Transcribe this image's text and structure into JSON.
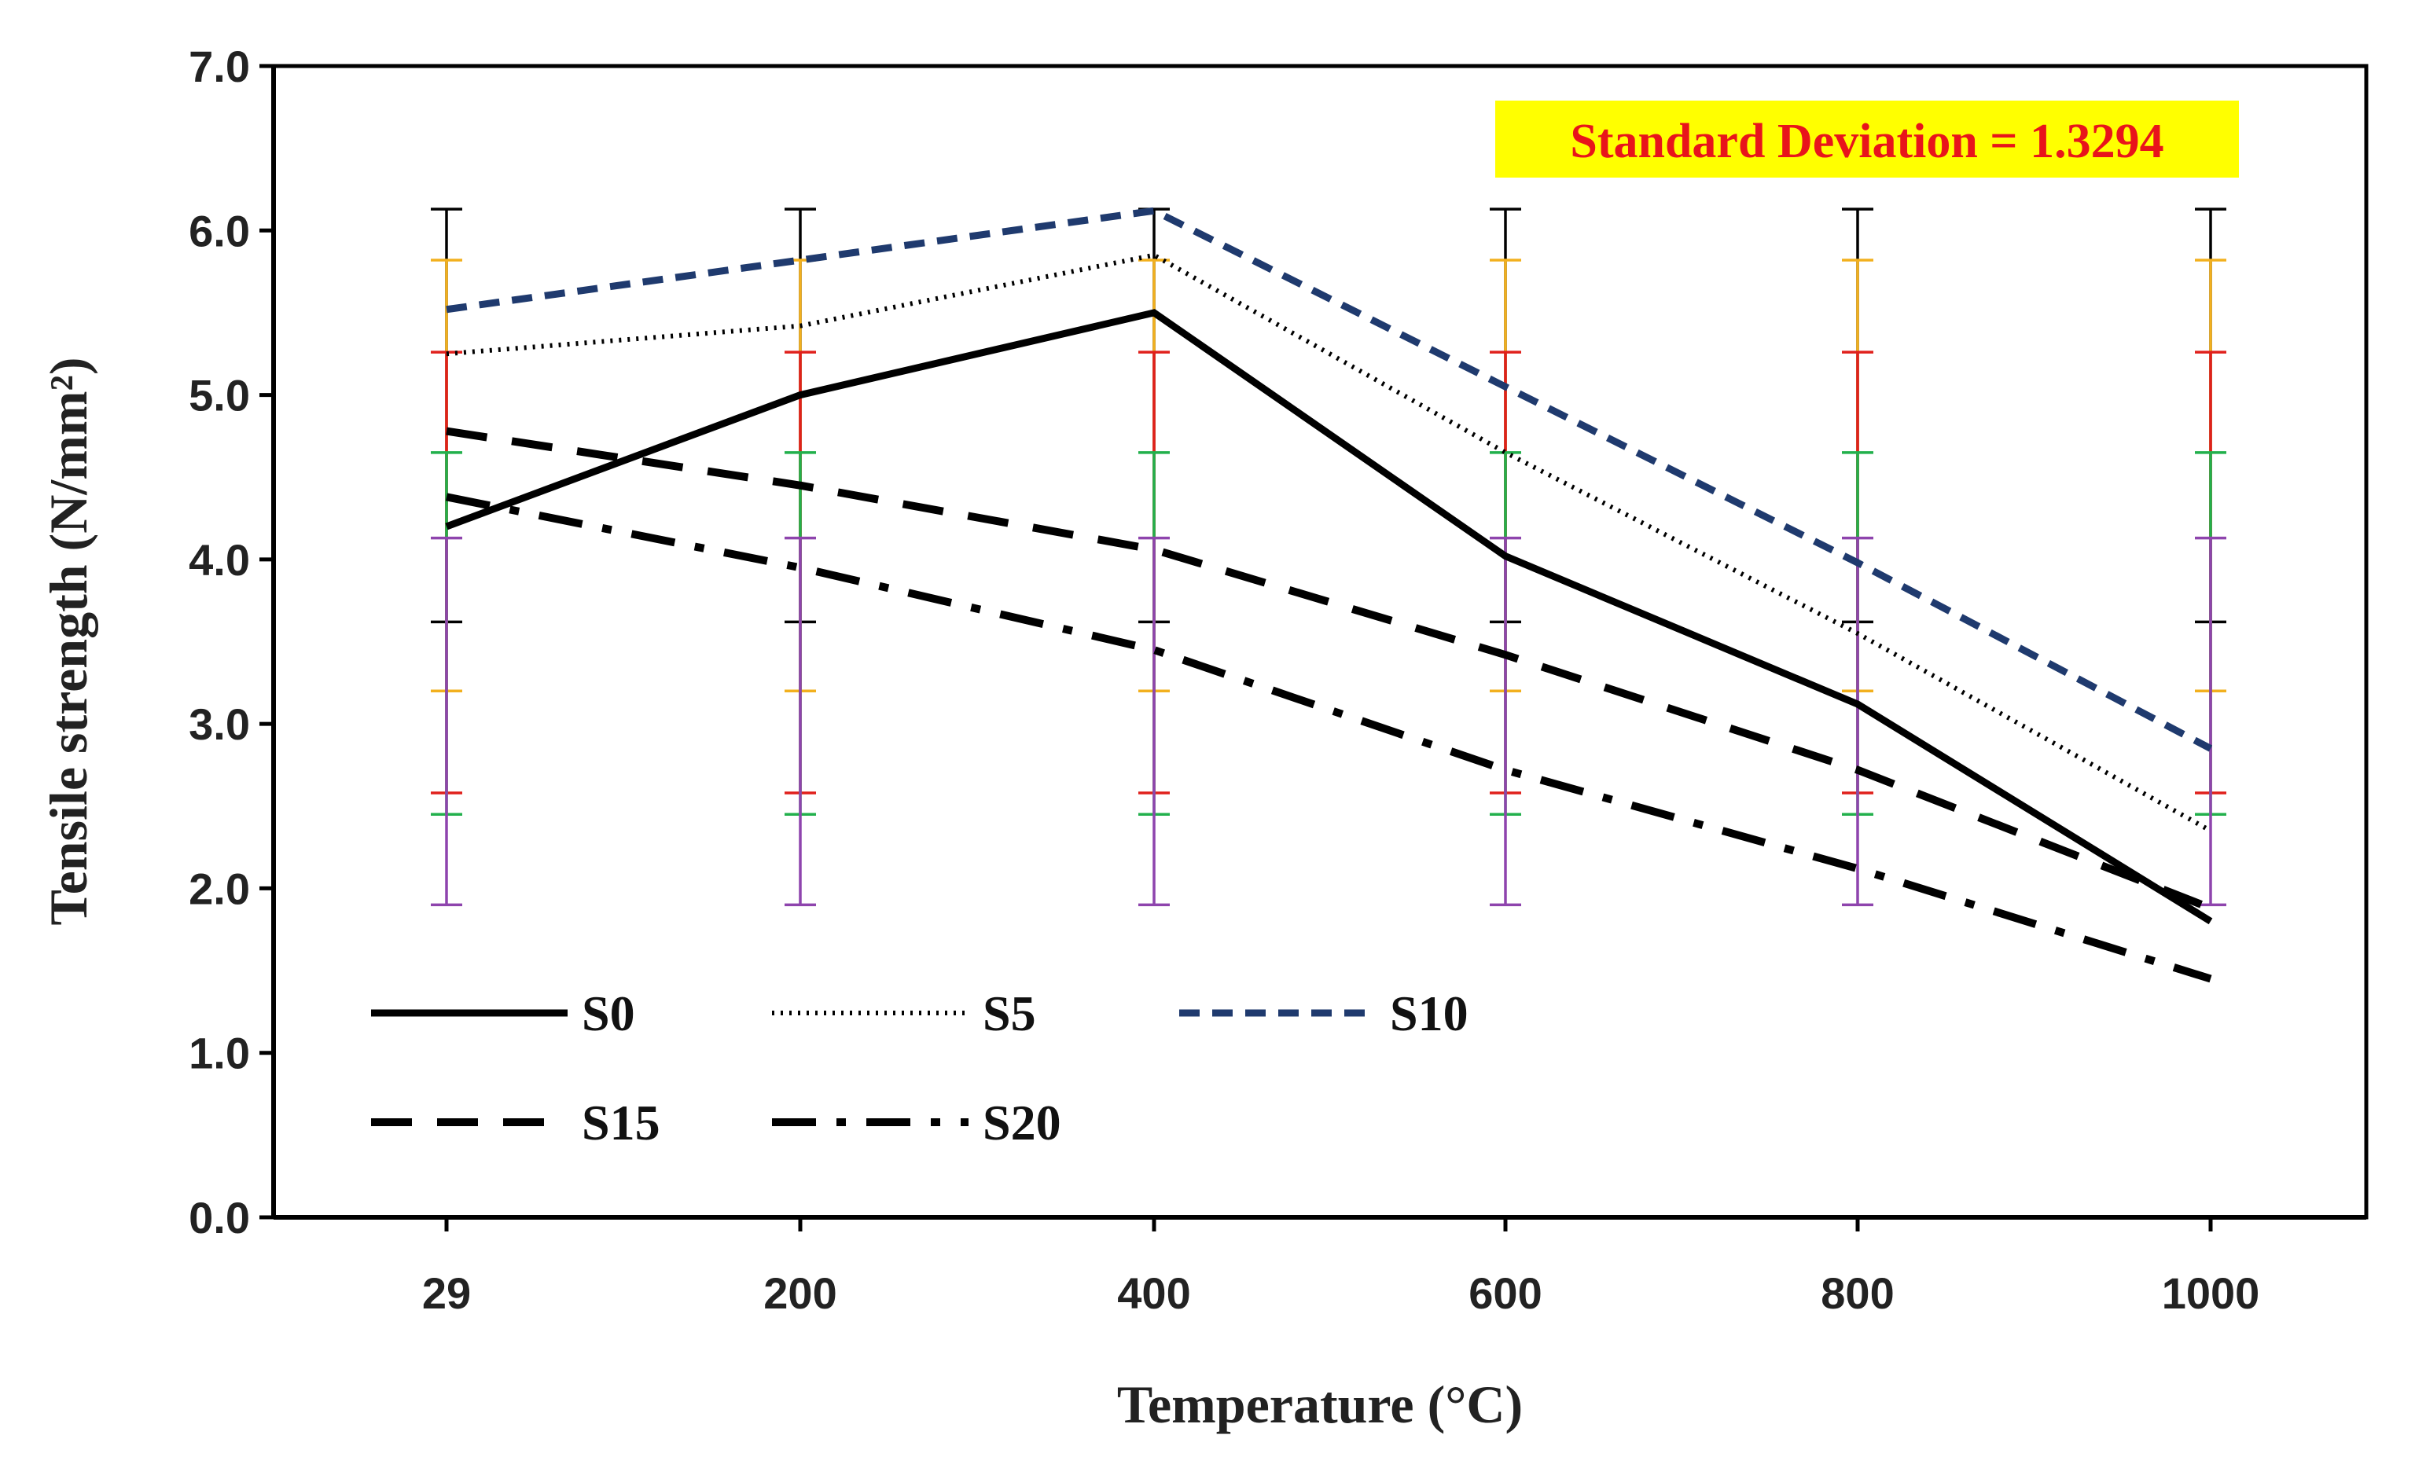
{
  "chart_data": {
    "type": "line",
    "title": "",
    "xlabel": "Temperature (°C)",
    "ylabel": "Tensile strength (N/mm²)",
    "categories": [
      "29",
      "200",
      "400",
      "600",
      "800",
      "1000"
    ],
    "ylim": [
      0,
      7
    ],
    "yticks": [
      "0.0",
      "1.0",
      "2.0",
      "3.0",
      "4.0",
      "5.0",
      "6.0",
      "7.0"
    ],
    "ytick_values": [
      0,
      1,
      2,
      3,
      4,
      5,
      6,
      7
    ],
    "grid": false,
    "legend_position": "bottom-left",
    "series": [
      {
        "name": "S0",
        "values": [
          4.2,
          5.0,
          5.5,
          4.02,
          3.12,
          1.8
        ],
        "color": "#000000",
        "style": "solid"
      },
      {
        "name": "S5",
        "values": [
          5.25,
          5.42,
          5.85,
          4.65,
          3.55,
          2.35
        ],
        "color": "#000000",
        "style": "dotted"
      },
      {
        "name": "S10",
        "values": [
          5.52,
          5.82,
          6.12,
          5.05,
          3.98,
          2.85
        ],
        "color": "#1f3a6e",
        "style": "dashed"
      },
      {
        "name": "S15",
        "values": [
          4.78,
          4.45,
          4.06,
          3.42,
          2.72,
          1.88
        ],
        "color": "#000000",
        "style": "long-dash"
      },
      {
        "name": "S20",
        "values": [
          4.38,
          3.95,
          3.45,
          2.72,
          2.12,
          1.45
        ],
        "color": "#000000",
        "style": "dash-dot"
      }
    ],
    "error_bars": [
      {
        "color": "#000000",
        "low": 3.62,
        "high": 6.13
      },
      {
        "color": "#f2b01e",
        "low": 3.2,
        "high": 5.82
      },
      {
        "color": "#e0201c",
        "low": 2.58,
        "high": 5.26
      },
      {
        "color": "#22b04c",
        "low": 2.45,
        "high": 4.65
      },
      {
        "color": "#8e44ad",
        "low": 1.9,
        "high": 4.13
      }
    ],
    "annotation": {
      "text": "Standard Deviation = 1.3294",
      "text_color": "#e8141b",
      "background": "#ffff00"
    }
  }
}
